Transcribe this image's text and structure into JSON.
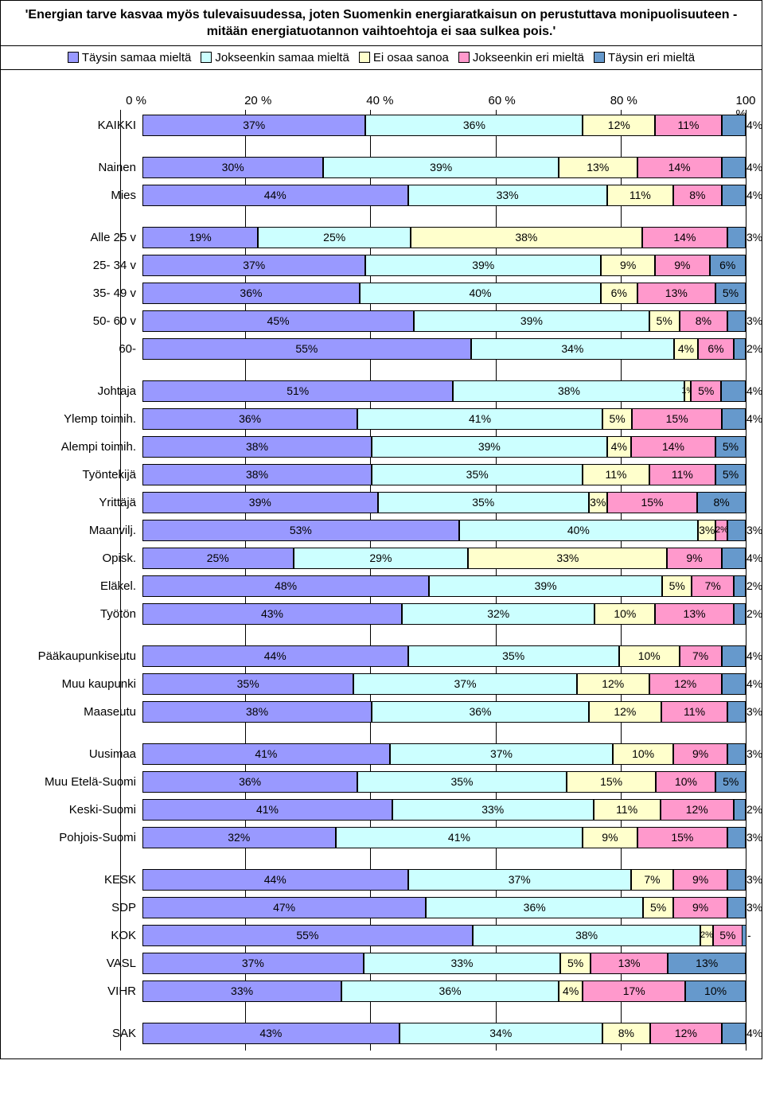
{
  "title": "'Energian tarve kasvaa myös tulevaisuudessa, joten Suomenkin energiaratkaisun on perustuttava monipuolisuuteen - mitään energiatuotannon vaihtoehtoja ei saa sulkea pois.'",
  "legend": [
    "Täysin samaa mieltä",
    "Jokseenkin samaa mieltä",
    "Ei osaa sanoa",
    "Jokseenkin eri mieltä",
    "Täysin eri mieltä"
  ],
  "colors": [
    "#9999ff",
    "#ccffff",
    "#ffffcc",
    "#ff99cc",
    "#6699cc"
  ],
  "axis_ticks": [
    "0 %",
    "20 %",
    "40 %",
    "60 %",
    "80 %",
    "100 %"
  ],
  "border_color": "#000000",
  "background": "#ffffff",
  "label_fontsize": 15,
  "value_fontsize": 14,
  "groups": [
    {
      "rows": [
        {
          "label": "KAIKKI",
          "values": [
            37,
            36,
            12,
            11,
            4
          ],
          "labels": [
            "37%",
            "36%",
            "12%",
            "11%",
            "4%"
          ]
        }
      ]
    },
    {
      "rows": [
        {
          "label": "Nainen",
          "values": [
            30,
            39,
            13,
            14,
            4
          ],
          "labels": [
            "30%",
            "39%",
            "13%",
            "14%",
            "4%"
          ]
        },
        {
          "label": "Mies",
          "values": [
            44,
            33,
            11,
            8,
            4
          ],
          "labels": [
            "44%",
            "33%",
            "11%",
            "8%",
            "4%"
          ]
        }
      ]
    },
    {
      "rows": [
        {
          "label": "Alle 25 v",
          "values": [
            19,
            25,
            38,
            14,
            3
          ],
          "labels": [
            "19%",
            "25%",
            "38%",
            "14%",
            "3%"
          ]
        },
        {
          "label": "25- 34 v",
          "values": [
            37,
            39,
            9,
            9,
            6
          ],
          "labels": [
            "37%",
            "39%",
            "9%",
            "9%",
            "6%"
          ]
        },
        {
          "label": "35- 49 v",
          "values": [
            36,
            40,
            6,
            13,
            5
          ],
          "labels": [
            "36%",
            "40%",
            "6%",
            "13%",
            "5%"
          ]
        },
        {
          "label": "50- 60 v",
          "values": [
            45,
            39,
            5,
            8,
            3
          ],
          "labels": [
            "45%",
            "39%",
            "5%",
            "8%",
            "3%"
          ]
        },
        {
          "label": "60-",
          "values": [
            55,
            34,
            4,
            6,
            2
          ],
          "labels": [
            "55%",
            "34%",
            "4%",
            "6%",
            "2%"
          ]
        }
      ]
    },
    {
      "rows": [
        {
          "label": "Johtaja",
          "values": [
            51,
            38,
            1,
            5,
            4
          ],
          "labels": [
            "51%",
            "38%",
            "1%",
            "5%",
            "4%"
          ]
        },
        {
          "label": "Ylemp toimih.",
          "values": [
            36,
            41,
            5,
            15,
            4
          ],
          "labels": [
            "36%",
            "41%",
            "5%",
            "15%",
            "4%"
          ]
        },
        {
          "label": "Alempi toimih.",
          "values": [
            38,
            39,
            4,
            14,
            5
          ],
          "labels": [
            "38%",
            "39%",
            "4%",
            "14%",
            "5%"
          ]
        },
        {
          "label": "Työntekijä",
          "values": [
            38,
            35,
            11,
            11,
            5
          ],
          "labels": [
            "38%",
            "35%",
            "11%",
            "11%",
            "5%"
          ]
        },
        {
          "label": "Yrittäjä",
          "values": [
            39,
            35,
            3,
            15,
            8
          ],
          "labels": [
            "39%",
            "35%",
            "3%",
            "15%",
            "8%"
          ]
        },
        {
          "label": "Maanvilj.",
          "values": [
            53,
            40,
            3,
            2,
            3
          ],
          "labels": [
            "53%",
            "40%",
            "3%",
            "2%",
            "3%"
          ]
        },
        {
          "label": "Opisk.",
          "values": [
            25,
            29,
            33,
            9,
            4
          ],
          "labels": [
            "25%",
            "29%",
            "33%",
            "9%",
            "4%"
          ]
        },
        {
          "label": "Eläkel.",
          "values": [
            48,
            39,
            5,
            7,
            2
          ],
          "labels": [
            "48%",
            "39%",
            "5%",
            "7%",
            "2%"
          ]
        },
        {
          "label": "Työtön",
          "values": [
            43,
            32,
            10,
            13,
            2
          ],
          "labels": [
            "43%",
            "32%",
            "10%",
            "13%",
            "2%"
          ]
        }
      ]
    },
    {
      "rows": [
        {
          "label": "Pääkaupunkiseutu",
          "values": [
            44,
            35,
            10,
            7,
            4
          ],
          "labels": [
            "44%",
            "35%",
            "10%",
            "7%",
            "4%"
          ]
        },
        {
          "label": "Muu kaupunki",
          "values": [
            35,
            37,
            12,
            12,
            4
          ],
          "labels": [
            "35%",
            "37%",
            "12%",
            "12%",
            "4%"
          ]
        },
        {
          "label": "Maaseutu",
          "values": [
            38,
            36,
            12,
            11,
            3
          ],
          "labels": [
            "38%",
            "36%",
            "12%",
            "11%",
            "3%"
          ]
        }
      ]
    },
    {
      "rows": [
        {
          "label": "Uusimaa",
          "values": [
            41,
            37,
            10,
            9,
            3
          ],
          "labels": [
            "41%",
            "37%",
            "10%",
            "9%",
            "3%"
          ]
        },
        {
          "label": "Muu Etelä-Suomi",
          "values": [
            36,
            35,
            15,
            10,
            5
          ],
          "labels": [
            "36%",
            "35%",
            "15%",
            "10%",
            "5%"
          ]
        },
        {
          "label": "Keski-Suomi",
          "values": [
            41,
            33,
            11,
            12,
            2
          ],
          "labels": [
            "41%",
            "33%",
            "11%",
            "12%",
            "2%"
          ]
        },
        {
          "label": "Pohjois-Suomi",
          "values": [
            32,
            41,
            9,
            15,
            3
          ],
          "labels": [
            "32%",
            "41%",
            "9%",
            "15%",
            "3%"
          ]
        }
      ]
    },
    {
      "rows": [
        {
          "label": "KESK",
          "values": [
            44,
            37,
            7,
            9,
            3
          ],
          "labels": [
            "44%",
            "37%",
            "7%",
            "9%",
            "3%"
          ]
        },
        {
          "label": "SDP",
          "values": [
            47,
            36,
            5,
            9,
            3
          ],
          "labels": [
            "47%",
            "36%",
            "5%",
            "9%",
            "3%"
          ]
        },
        {
          "label": "KOK",
          "values": [
            55,
            38,
            2,
            5,
            0
          ],
          "labels": [
            "55%",
            "38%",
            "2%",
            "5%",
            "-"
          ]
        },
        {
          "label": "VASL",
          "values": [
            37,
            33,
            5,
            13,
            13
          ],
          "labels": [
            "37%",
            "33%",
            "5%",
            "13%",
            "13%"
          ]
        },
        {
          "label": "VIHR",
          "values": [
            33,
            36,
            4,
            17,
            10
          ],
          "labels": [
            "33%",
            "36%",
            "4%",
            "17%",
            "10%"
          ]
        }
      ]
    },
    {
      "rows": [
        {
          "label": "SAK",
          "values": [
            43,
            34,
            8,
            12,
            4
          ],
          "labels": [
            "43%",
            "34%",
            "8%",
            "12%",
            "4%"
          ]
        }
      ]
    }
  ]
}
